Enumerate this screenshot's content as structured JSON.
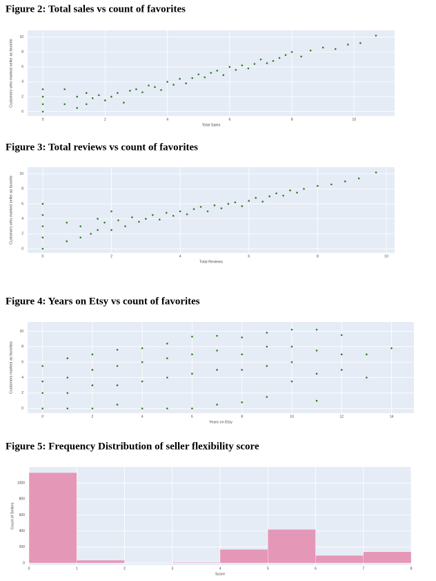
{
  "chart_data": [
    {
      "type": "scatter",
      "title": "Figure 2: Total sales vs count of favorites",
      "x_label": "Total Sales",
      "y_label": "Customers who marked seller as favorite",
      "color": "#2e7d1f",
      "grid": true,
      "x": [
        0,
        0,
        0,
        0,
        0.7,
        0.7,
        1.1,
        1.1,
        1.4,
        1.4,
        1.6,
        1.8,
        2,
        2.2,
        2.4,
        2.6,
        2.8,
        3,
        3.2,
        3.4,
        3.6,
        3.8,
        4,
        4.2,
        4.4,
        4.6,
        4.8,
        5,
        5.2,
        5.4,
        5.6,
        5.8,
        6,
        6.2,
        6.4,
        6.6,
        6.8,
        7,
        7.2,
        7.4,
        7.6,
        7.8,
        8,
        8.3,
        8.6,
        9,
        9.4,
        9.8,
        10.2,
        10.7
      ],
      "values": [
        0,
        1,
        2,
        3,
        1,
        3,
        0.5,
        2,
        1,
        2.5,
        1.8,
        2.2,
        1.5,
        2,
        2.5,
        1.2,
        2.8,
        3,
        2.6,
        3.5,
        3.3,
        2.9,
        4,
        3.6,
        4.4,
        3.8,
        4.5,
        5,
        4.6,
        5.2,
        5.5,
        4.9,
        6,
        5.6,
        6.2,
        5.8,
        6.4,
        7,
        6.5,
        6.8,
        7.2,
        7.6,
        8,
        7.4,
        8.2,
        8.6,
        8.4,
        9,
        9.2,
        10.2
      ],
      "xlim": [
        -0.49,
        11.3
      ],
      "ylim": [
        -0.6,
        10.9
      ],
      "xticks": [
        0,
        2,
        4,
        6,
        8,
        10
      ],
      "yticks": [
        0,
        2,
        4,
        6,
        8,
        10
      ]
    },
    {
      "type": "scatter",
      "title": "Figure 3: Total reviews vs count of favorites",
      "x_label": "Total Reviews",
      "y_label": "Customers who marked seller as favorite",
      "color": "#2e7d1f",
      "grid": true,
      "x": [
        0,
        0,
        0,
        0,
        0,
        0.7,
        0.7,
        1.1,
        1.1,
        1.4,
        1.6,
        1.6,
        1.8,
        2,
        2,
        2.2,
        2.4,
        2.6,
        2.8,
        3,
        3.2,
        3.4,
        3.6,
        3.8,
        4,
        4.2,
        4.4,
        4.6,
        4.8,
        5,
        5.2,
        5.4,
        5.6,
        5.8,
        6,
        6.2,
        6.4,
        6.6,
        6.8,
        7,
        7.2,
        7.4,
        7.6,
        8,
        8.4,
        8.8,
        9.2,
        9.7
      ],
      "values": [
        0,
        1.5,
        3,
        4.5,
        6,
        1,
        3.5,
        1.5,
        3,
        2,
        2.5,
        4,
        3.5,
        2.5,
        5,
        3.8,
        3,
        4.2,
        3.6,
        4,
        4.5,
        3.9,
        4.8,
        4.4,
        5,
        4.6,
        5.3,
        5.6,
        5,
        5.8,
        5.4,
        6,
        6.2,
        5.7,
        6.4,
        6.8,
        6.3,
        7,
        7.4,
        7.1,
        7.8,
        7.5,
        8,
        8.4,
        8.6,
        9,
        9.4,
        10.2
      ],
      "xlim": [
        -0.44,
        10.24
      ],
      "ylim": [
        -0.55,
        10.9
      ],
      "xticks": [
        0,
        2,
        4,
        6,
        8,
        10
      ],
      "yticks": [
        0,
        2,
        4,
        6,
        8,
        10
      ]
    },
    {
      "type": "scatter",
      "title": "Figure 4: Years on Etsy vs count of favorites",
      "x_label": "Years on Etsy",
      "y_label": "Customers marked as favorites",
      "color": "#2e7d1f",
      "grid": true,
      "x": [
        0,
        0,
        0,
        0,
        1,
        1,
        1,
        1,
        2,
        2,
        2,
        2,
        3,
        3,
        3,
        3,
        4,
        4,
        4,
        4,
        5,
        5,
        5,
        5,
        6,
        6,
        6,
        6,
        7,
        7,
        7,
        7,
        8,
        8,
        8,
        8,
        9,
        9,
        9,
        9,
        10,
        10,
        10,
        10,
        11,
        11,
        11,
        11,
        12,
        12,
        12,
        13,
        13,
        14
      ],
      "values": [
        0,
        2,
        3.5,
        5.5,
        0,
        2,
        4,
        6.5,
        0,
        3,
        5,
        7,
        0.5,
        3,
        5.5,
        7.6,
        0,
        3.5,
        6,
        7.8,
        0,
        4,
        6.5,
        8.4,
        0,
        4.5,
        7,
        9.3,
        0.5,
        5,
        7.5,
        9.4,
        0.8,
        5,
        7,
        9.2,
        1.5,
        5.5,
        8,
        9.8,
        3.5,
        6,
        8,
        10.2,
        1,
        4.5,
        7.5,
        10.2,
        5,
        7,
        9.5,
        4,
        7,
        7.8
      ],
      "xlim": [
        -0.6,
        14.9
      ],
      "ylim": [
        -0.6,
        11.2
      ],
      "xticks": [
        0,
        2,
        4,
        6,
        8,
        10,
        12,
        14
      ],
      "yticks": [
        0,
        2,
        4,
        6,
        8,
        10
      ]
    },
    {
      "type": "histogram",
      "title": "Figure 5: Frequency Distribution of seller flexibility score",
      "x_label": "Score",
      "y_label": "Count of Sellers",
      "color": "#e597b8",
      "grid": true,
      "bins": [
        0,
        1,
        2,
        3,
        4,
        5,
        6,
        7,
        8
      ],
      "values": [
        1130,
        35,
        0,
        8,
        170,
        420,
        95,
        140
      ],
      "xlim": [
        0,
        8
      ],
      "ylim": [
        -26,
        1200
      ],
      "xticks": [
        0,
        1,
        2,
        3,
        4,
        5,
        6,
        7,
        8
      ],
      "yticks": [
        0,
        200,
        400,
        600,
        800,
        1000
      ]
    }
  ]
}
